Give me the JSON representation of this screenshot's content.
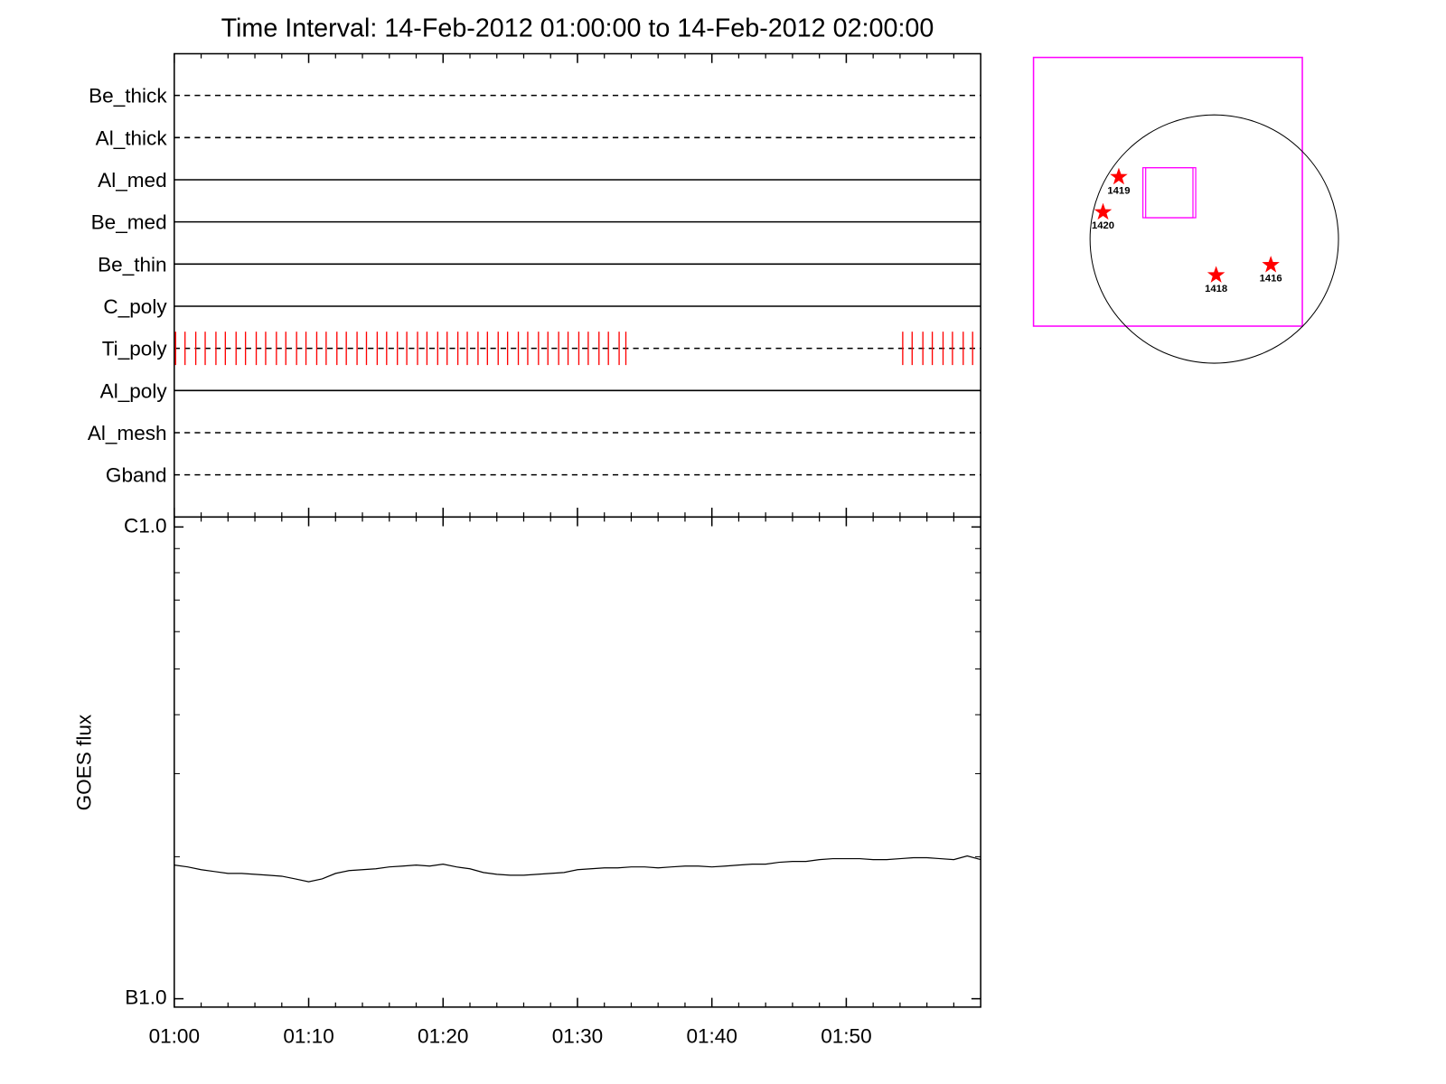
{
  "chart_data": [
    {
      "type": "event",
      "title": "Time Interval: 14-Feb-2012 01:00:00 to 14-Feb-2012 02:00:00",
      "categories": [
        {
          "label": "Be_thick",
          "style": "dashed"
        },
        {
          "label": "Al_thick",
          "style": "dashed"
        },
        {
          "label": "Al_med",
          "style": "solid"
        },
        {
          "label": "Be_med",
          "style": "solid"
        },
        {
          "label": "Be_thin",
          "style": "solid"
        },
        {
          "label": "C_poly",
          "style": "solid"
        },
        {
          "label": "Ti_poly",
          "style": "dashed",
          "color": "#ff0000",
          "events": [
            0.1,
            0.8,
            1.6,
            2.3,
            3.1,
            3.8,
            4.6,
            5.3,
            6.1,
            6.8,
            7.6,
            8.3,
            9.1,
            9.8,
            10.6,
            11.3,
            12.1,
            12.8,
            13.6,
            14.3,
            15.1,
            15.8,
            16.6,
            17.3,
            18.1,
            18.8,
            19.6,
            20.3,
            21.1,
            21.8,
            22.6,
            23.3,
            24.1,
            24.8,
            25.6,
            26.3,
            27.1,
            27.8,
            28.6,
            29.3,
            30.1,
            30.8,
            31.6,
            32.3,
            33.1,
            33.6,
            54.2,
            54.9,
            55.7,
            56.4,
            57.2,
            57.9,
            58.7,
            59.4
          ]
        },
        {
          "label": "Al_poly",
          "style": "solid"
        },
        {
          "label": "Al_mesh",
          "style": "dashed"
        },
        {
          "label": "Gband",
          "style": "dashed"
        }
      ],
      "xlim": [
        0,
        60
      ]
    },
    {
      "type": "line",
      "ylabel": "GOES flux",
      "log_y": true,
      "xlim": [
        0,
        60
      ],
      "xticks": [
        {
          "value": 0,
          "label": "01:00"
        },
        {
          "value": 10,
          "label": "01:10"
        },
        {
          "value": 20,
          "label": "01:20"
        },
        {
          "value": 30,
          "label": "01:30"
        },
        {
          "value": 40,
          "label": "01:40"
        },
        {
          "value": 50,
          "label": "01:50"
        }
      ],
      "xminorticks": [
        2,
        4,
        6,
        8,
        12,
        14,
        16,
        18,
        22,
        24,
        26,
        28,
        32,
        34,
        36,
        38,
        42,
        44,
        46,
        48,
        52,
        54,
        56,
        58
      ],
      "ylim": [
        9.6e-08,
        1.05e-06
      ],
      "yticks": [
        {
          "value": 1e-07,
          "label": "B1.0"
        },
        {
          "value": 1e-06,
          "label": "C1.0"
        }
      ],
      "yminorticks": [
        2e-07,
        3e-07,
        4e-07,
        5e-07,
        6e-07,
        7e-07,
        8e-07,
        9e-07
      ],
      "x": [
        0,
        1,
        2,
        3,
        4,
        5,
        6,
        7,
        8,
        9,
        10,
        11,
        12,
        13,
        14,
        15,
        16,
        17,
        18,
        19,
        20,
        21,
        22,
        23,
        24,
        25,
        26,
        27,
        28,
        29,
        30,
        31,
        32,
        33,
        34,
        35,
        36,
        37,
        38,
        39,
        40,
        41,
        42,
        43,
        44,
        45,
        46,
        47,
        48,
        49,
        50,
        51,
        52,
        53,
        54,
        55,
        56,
        57,
        58,
        59,
        60
      ],
      "series": [
        {
          "color": "#000000",
          "values": [
            1.92e-07,
            1.903e-07,
            1.877e-07,
            1.86e-07,
            1.844e-07,
            1.844e-07,
            1.835e-07,
            1.827e-07,
            1.819e-07,
            1.795e-07,
            1.77e-07,
            1.795e-07,
            1.844e-07,
            1.869e-07,
            1.877e-07,
            1.886e-07,
            1.903e-07,
            1.911e-07,
            1.92e-07,
            1.911e-07,
            1.929e-07,
            1.903e-07,
            1.886e-07,
            1.852e-07,
            1.835e-07,
            1.827e-07,
            1.827e-07,
            1.835e-07,
            1.844e-07,
            1.852e-07,
            1.877e-07,
            1.886e-07,
            1.894e-07,
            1.894e-07,
            1.903e-07,
            1.903e-07,
            1.894e-07,
            1.903e-07,
            1.911e-07,
            1.911e-07,
            1.903e-07,
            1.911e-07,
            1.92e-07,
            1.929e-07,
            1.929e-07,
            1.946e-07,
            1.954e-07,
            1.954e-07,
            1.972e-07,
            1.981e-07,
            1.981e-07,
            1.981e-07,
            1.972e-07,
            1.972e-07,
            1.981e-07,
            1.99e-07,
            1.99e-07,
            1.981e-07,
            1.972e-07,
            2.008e-07,
            1.972e-07
          ]
        }
      ]
    }
  ],
  "map": {
    "marker_color": "#ff0000",
    "markers": [
      {
        "label": "1419"
      },
      {
        "label": "1420"
      },
      {
        "label": "1418"
      },
      {
        "label": "1416"
      }
    ]
  }
}
